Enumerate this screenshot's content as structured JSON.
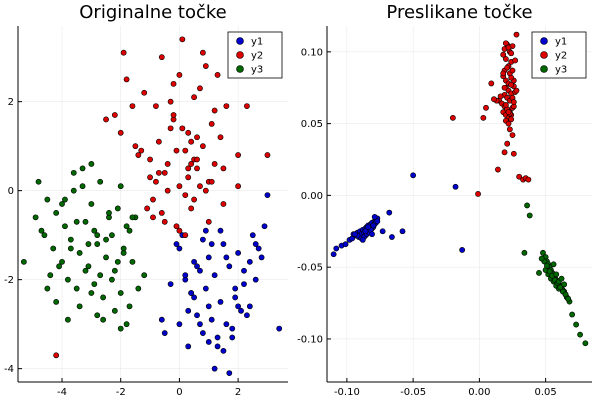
{
  "chart_data": [
    {
      "type": "scatter",
      "title": "Originalne točke",
      "xlabel": "",
      "ylabel": "",
      "xlim": [
        -5.5,
        3.7
      ],
      "ylim": [
        -4.3,
        3.7
      ],
      "xticks": [
        -4,
        -2,
        0,
        2
      ],
      "yticks": [
        -4,
        -2,
        0,
        2
      ],
      "xtick_labels": [
        "-4",
        "-2",
        "0",
        "2"
      ],
      "ytick_labels": [
        "-4",
        "-2",
        "0",
        "2"
      ],
      "grid": true,
      "legend_position": "top-right",
      "series": [
        {
          "name": "y1",
          "color": "#0000cc",
          "x": [
            0.0,
            0.5,
            1.0,
            1.5,
            2.0,
            0.2,
            0.7,
            1.2,
            1.7,
            2.2,
            0.4,
            0.9,
            1.4,
            1.9,
            2.4,
            0.6,
            1.1,
            1.6,
            2.1,
            0.8,
            1.3,
            1.8,
            0.3,
            1.0,
            1.5,
            2.5,
            2.9,
            3.0,
            2.8,
            2.6,
            -0.5,
            -0.3,
            0.1,
            0.6,
            1.2,
            1.8,
            2.3,
            2.7,
            3.4,
            1.0,
            0.5,
            1.4,
            0.8,
            0.2,
            2.0,
            2.2,
            1.1,
            0.7,
            -0.1,
            -0.6,
            0.3,
            1.6,
            1.9,
            0.9,
            2.4,
            1.3,
            0.4,
            0.0,
            2.6,
            1.7
          ],
          "y": [
            -1.3,
            -1.6,
            -1.5,
            -1.2,
            -1.4,
            -2.0,
            -1.8,
            -1.9,
            -1.7,
            -2.1,
            -2.3,
            -2.2,
            -2.5,
            -2.4,
            -2.6,
            -2.8,
            -2.9,
            -3.0,
            -2.7,
            -3.2,
            -3.3,
            -3.1,
            -3.5,
            -3.4,
            -3.6,
            -1.0,
            -0.8,
            -0.1,
            -1.5,
            -2.0,
            -3.2,
            -2.1,
            -1.0,
            -1.7,
            -4.0,
            -3.3,
            -2.8,
            -1.3,
            -3.1,
            -2.6,
            -2.4,
            -0.9,
            -1.1,
            -1.9,
            -2.6,
            -1.8,
            -1.2,
            -3.0,
            -1.2,
            -2.9,
            -2.7,
            -1.5,
            -2.2,
            -0.9,
            -1.6,
            -3.5,
            -2.3,
            -3.0,
            -1.2,
            -4.1
          ]
        },
        {
          "name": "y2",
          "color": "#dd0000",
          "x": [
            -2.5,
            -2.0,
            -1.5,
            -1.0,
            -0.5,
            0.0,
            0.5,
            1.0,
            1.5,
            2.0,
            -1.8,
            -1.2,
            -0.8,
            -0.2,
            0.3,
            0.8,
            1.2,
            -0.6,
            0.0,
            0.4,
            0.9,
            -1.0,
            -0.4,
            0.2,
            0.6,
            1.1,
            1.6,
            -1.4,
            -0.7,
            0.1,
            0.5,
            -0.3,
            0.7,
            1.3,
            -0.9,
            0.3,
            -0.1,
            0.6,
            1.0,
            -0.5,
            0.2,
            -1.6,
            -0.8,
            0.4,
            1.4,
            -2.2,
            -1.1,
            0.0,
            0.9,
            2.3,
            3.0,
            -0.6,
            0.1,
            0.8,
            -0.2,
            0.5,
            1.2,
            -1.3,
            -0.4,
            0.3,
            0.7,
            -0.9,
            -0.1,
            1.5,
            -4.2,
            2.0,
            -0.3,
            0.6,
            0.2,
            -0.7,
            1.1,
            -1.9,
            -0.2,
            0.4
          ],
          "y": [
            1.6,
            1.3,
            1.0,
            0.7,
            0.4,
            0.1,
            -0.2,
            0.2,
            0.5,
            0.8,
            2.5,
            2.2,
            1.9,
            1.6,
            1.3,
            1.0,
            1.8,
            -0.5,
            -0.9,
            -0.4,
            0.0,
            0.3,
            0.6,
            0.9,
            1.2,
            1.5,
            1.9,
            0.8,
            1.1,
            1.4,
            0.7,
            2.0,
            2.3,
            2.6,
            -0.2,
            0.3,
            0.9,
            0.5,
            -0.7,
            -0.7,
            -1.0,
            1.9,
            0.2,
            0.6,
            1.2,
            1.7,
            -0.4,
            2.6,
            2.8,
            1.9,
            0.8,
            3.0,
            3.4,
            3.1,
            2.4,
            2.1,
            0.6,
            0.9,
            0.0,
            0.5,
            0.1,
            -0.6,
            -0.8,
            -0.3,
            -3.7,
            0.1,
            1.4,
            0.7,
            -0.1,
            0.4,
            0.2,
            3.1,
            1.7,
            1.1
          ]
        },
        {
          "name": "y3",
          "color": "#006600",
          "x": [
            -4.8,
            -4.5,
            -4.2,
            -3.9,
            -3.6,
            -3.3,
            -3.0,
            -2.7,
            -2.4,
            -2.1,
            -1.8,
            -1.5,
            -4.6,
            -4.3,
            -4.0,
            -3.7,
            -3.4,
            -3.1,
            -2.8,
            -2.5,
            -2.2,
            -1.9,
            -1.6,
            -1.2,
            -4.4,
            -4.1,
            -3.8,
            -3.5,
            -3.2,
            -2.9,
            -2.6,
            -2.3,
            -2.0,
            -1.7,
            -1.4,
            -5.3,
            -4.9,
            -4.7,
            -4.2,
            -3.8,
            -3.4,
            -3.0,
            -2.6,
            -2.2,
            -1.8,
            -4.0,
            -3.6,
            -3.2,
            -2.8,
            -2.4,
            -2.0,
            -3.7,
            -3.3,
            -2.9,
            -2.5,
            -2.1,
            -1.7,
            -4.5,
            -3.9,
            -3.1,
            -2.7,
            -2.3,
            -1.9,
            -3.5,
            -2.0,
            -2.8,
            -1.6,
            -3.0
          ],
          "y": [
            0.2,
            -0.2,
            -0.5,
            -0.8,
            0.4,
            0.1,
            -0.3,
            0.2,
            -0.6,
            -0.4,
            -0.8,
            -0.6,
            -1.0,
            -1.3,
            -1.6,
            -1.1,
            -1.4,
            -1.7,
            -1.2,
            -1.5,
            -1.8,
            -1.3,
            -1.6,
            -1.9,
            -1.9,
            -1.7,
            -2.0,
            -2.2,
            -1.8,
            -2.1,
            -2.4,
            -2.0,
            -2.3,
            -2.6,
            -2.2,
            -1.6,
            -0.6,
            -0.9,
            -2.5,
            -2.9,
            -2.6,
            -2.3,
            -2.9,
            -2.7,
            -3.0,
            -0.3,
            0.0,
            -0.7,
            -1.0,
            -0.5,
            0.1,
            -1.3,
            0.5,
            -0.9,
            -1.1,
            -1.6,
            -0.9,
            -2.2,
            -0.2,
            -1.2,
            -1.9,
            -1.0,
            -1.4,
            -0.7,
            -3.1,
            -2.8,
            -0.6,
            0.6
          ]
        }
      ]
    },
    {
      "type": "scatter",
      "title": "Preslikane točke",
      "xlabel": "",
      "ylabel": "",
      "xlim": [
        -0.115,
        0.085
      ],
      "ylim": [
        -0.13,
        0.118
      ],
      "xticks": [
        -0.1,
        -0.05,
        0.0,
        0.05
      ],
      "yticks": [
        -0.1,
        -0.05,
        0.0,
        0.05,
        0.1
      ],
      "xtick_labels": [
        "-0.10",
        "-0.05",
        "0.00",
        "0.05"
      ],
      "ytick_labels": [
        "-0.10",
        "-0.05",
        "0.00",
        "0.05",
        "0.10"
      ],
      "grid": true,
      "legend_position": "top-right",
      "series": [
        {
          "name": "y1",
          "color": "#0000cc",
          "x": [
            -0.11,
            -0.108,
            -0.104,
            -0.101,
            -0.098,
            -0.096,
            -0.095,
            -0.093,
            -0.092,
            -0.091,
            -0.09,
            -0.089,
            -0.088,
            -0.087,
            -0.086,
            -0.086,
            -0.085,
            -0.084,
            -0.084,
            -0.083,
            -0.082,
            -0.081,
            -0.081,
            -0.08,
            -0.079,
            -0.079,
            -0.078,
            -0.078,
            -0.077,
            -0.077,
            -0.089,
            -0.087,
            -0.085,
            -0.083,
            -0.082,
            -0.08,
            -0.092,
            -0.094,
            -0.073,
            -0.068,
            -0.066,
            -0.058,
            -0.05,
            -0.018,
            -0.013,
            -0.088,
            -0.086,
            -0.084,
            -0.081,
            -0.079
          ],
          "y": [
            -0.041,
            -0.037,
            -0.035,
            -0.034,
            -0.031,
            -0.03,
            -0.027,
            -0.028,
            -0.026,
            -0.029,
            -0.025,
            -0.027,
            -0.024,
            -0.026,
            -0.023,
            -0.028,
            -0.022,
            -0.025,
            -0.021,
            -0.024,
            -0.02,
            -0.023,
            -0.019,
            -0.022,
            -0.018,
            -0.02,
            -0.017,
            -0.019,
            -0.016,
            -0.018,
            -0.03,
            -0.029,
            -0.027,
            -0.026,
            -0.024,
            -0.021,
            -0.028,
            -0.027,
            -0.025,
            -0.012,
            -0.029,
            -0.025,
            0.014,
            0.006,
            -0.038,
            -0.031,
            -0.025,
            -0.022,
            -0.027,
            -0.015
          ]
        },
        {
          "name": "y2",
          "color": "#dd0000",
          "x": [
            0.018,
            0.019,
            0.02,
            0.021,
            0.022,
            0.023,
            0.024,
            0.025,
            0.019,
            0.021,
            0.023,
            0.025,
            0.026,
            0.018,
            0.02,
            0.022,
            0.024,
            0.026,
            0.02,
            0.022,
            0.024,
            0.019,
            0.021,
            0.023,
            0.025,
            0.027,
            0.015,
            0.017,
            0.019,
            0.021,
            0.023,
            0.025,
            0.028,
            0.013,
            0.016,
            0.018,
            0.02,
            0.022,
            0.024,
            0.026,
            0.02,
            0.022,
            0.024,
            0.023,
            0.025,
            0.021,
            0.019,
            0.026,
            0.028,
            0.03,
            0.033,
            0.035,
            0.037,
            0.02,
            0.022,
            0.024,
            0.009,
            0.005,
            -0.001,
            0.003,
            -0.02,
            0.014,
            0.011,
            0.021,
            0.026,
            0.023,
            0.018,
            0.027,
            0.019,
            0.02,
            0.024,
            0.022
          ],
          "y": [
            0.098,
            0.102,
            0.095,
            0.105,
            0.09,
            0.1,
            0.093,
            0.104,
            0.087,
            0.089,
            0.085,
            0.087,
            0.08,
            0.083,
            0.08,
            0.078,
            0.082,
            0.076,
            0.075,
            0.073,
            0.071,
            0.07,
            0.068,
            0.066,
            0.068,
            0.072,
            0.066,
            0.064,
            0.062,
            0.06,
            0.058,
            0.061,
            0.073,
            0.066,
            0.069,
            0.058,
            0.056,
            0.054,
            0.056,
            0.062,
            0.052,
            0.05,
            0.053,
            0.046,
            0.042,
            0.036,
            0.03,
            0.029,
            0.112,
            0.013,
            0.011,
            0.012,
            0.011,
            0.106,
            0.103,
            0.099,
            0.078,
            0.061,
            0.001,
            0.054,
            0.054,
            0.018,
            0.067,
            0.06,
            0.065,
            0.057,
            0.085,
            0.094,
            0.075,
            0.063,
            0.077,
            0.058
          ]
        },
        {
          "name": "y3",
          "color": "#006600",
          "x": [
            0.048,
            0.05,
            0.051,
            0.052,
            0.053,
            0.054,
            0.055,
            0.056,
            0.057,
            0.058,
            0.059,
            0.06,
            0.061,
            0.062,
            0.063,
            0.064,
            0.065,
            0.066,
            0.067,
            0.068,
            0.05,
            0.052,
            0.054,
            0.056,
            0.058,
            0.06,
            0.049,
            0.051,
            0.053,
            0.055,
            0.057,
            0.059,
            0.061,
            0.063,
            0.065,
            0.067,
            0.07,
            0.073,
            0.076,
            0.08,
            0.036,
            0.038,
            0.034,
            0.045,
            0.047,
            0.056,
            0.058,
            0.06,
            0.062,
            0.064
          ],
          "y": [
            -0.04,
            -0.043,
            -0.046,
            -0.048,
            -0.05,
            -0.052,
            -0.054,
            -0.055,
            -0.057,
            -0.059,
            -0.06,
            -0.062,
            -0.063,
            -0.064,
            -0.066,
            -0.067,
            -0.069,
            -0.071,
            -0.072,
            -0.074,
            -0.052,
            -0.055,
            -0.058,
            -0.06,
            -0.063,
            -0.065,
            -0.046,
            -0.049,
            -0.053,
            -0.056,
            -0.059,
            -0.061,
            -0.064,
            -0.067,
            -0.069,
            -0.072,
            -0.083,
            -0.09,
            -0.097,
            -0.103,
            -0.007,
            -0.014,
            -0.04,
            -0.054,
            -0.044,
            -0.048,
            -0.055,
            -0.06,
            -0.058,
            -0.062
          ]
        }
      ]
    }
  ]
}
